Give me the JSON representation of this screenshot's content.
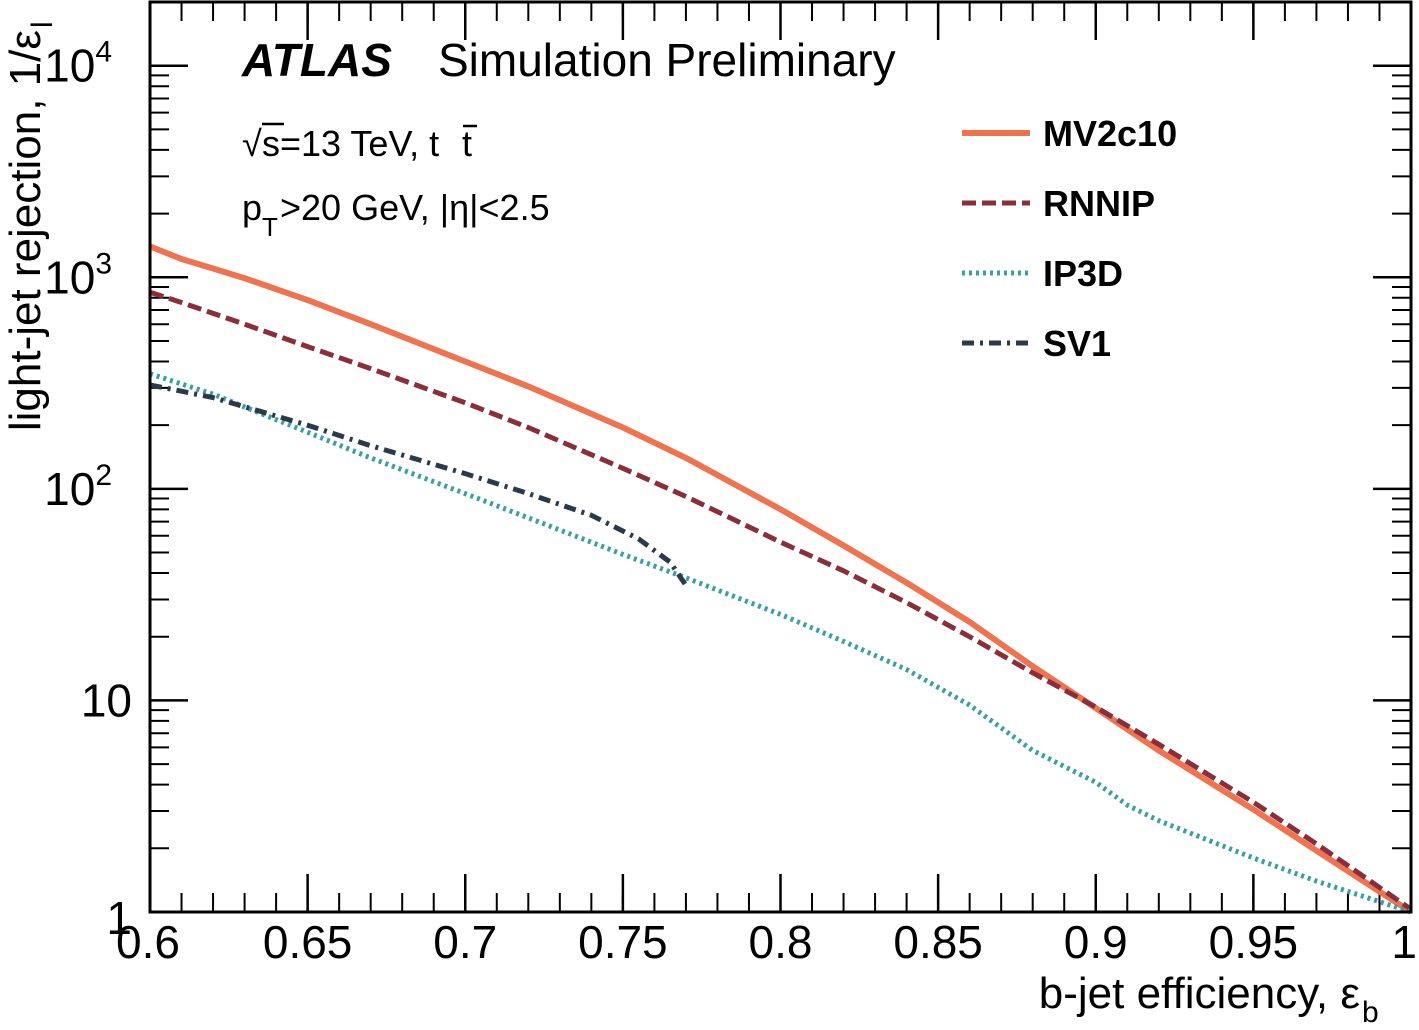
{
  "chart_data": {
    "type": "line",
    "experiment": "ATLAS",
    "subtitle": "Simulation Preliminary",
    "annotations": {
      "sqrt_symbol": "√",
      "energy": "s=13 TeV, t",
      "energy_tbar": "t",
      "cuts_p": "p",
      "cuts_sub": "T",
      "cuts_rest": ">20 GeV, |η|<2.5"
    },
    "xlabel": "b-jet efficiency, ε",
    "xlabel_sub": "b",
    "ylabel": "light-jet rejection, 1/ε",
    "ylabel_sub": "l",
    "xlim": [
      0.6,
      1.0
    ],
    "ylim": [
      1,
      20000
    ],
    "y_scale": "log",
    "legend_position": "top-right",
    "x_ticks": [
      {
        "value": 0.6,
        "label": "0.6"
      },
      {
        "value": 0.65,
        "label": "0.65"
      },
      {
        "value": 0.7,
        "label": "0.7"
      },
      {
        "value": 0.75,
        "label": "0.75"
      },
      {
        "value": 0.8,
        "label": "0.8"
      },
      {
        "value": 0.85,
        "label": "0.85"
      },
      {
        "value": 0.9,
        "label": "0.9"
      },
      {
        "value": 0.95,
        "label": "0.95"
      },
      {
        "value": 1.0,
        "label": "1"
      }
    ],
    "y_ticks": [
      {
        "value": 1,
        "label": "1",
        "sup": ""
      },
      {
        "value": 10,
        "label": "10",
        "sup": ""
      },
      {
        "value": 100,
        "label": "10",
        "sup": "2"
      },
      {
        "value": 1000,
        "label": "10",
        "sup": "3"
      },
      {
        "value": 10000,
        "label": "10",
        "sup": "4"
      }
    ],
    "series": [
      {
        "name": "MV2c10",
        "color": "#f0734f",
        "style": "solid",
        "x": [
          0.6,
          0.61,
          0.62,
          0.63,
          0.65,
          0.67,
          0.7,
          0.72,
          0.75,
          0.77,
          0.8,
          0.82,
          0.84,
          0.86,
          0.88,
          0.9,
          0.92,
          0.95,
          0.97,
          1.0
        ],
        "y": [
          1400,
          1220,
          1100,
          990,
          780,
          600,
          400,
          305,
          195,
          140,
          80,
          54,
          36,
          23.5,
          14.5,
          9.2,
          5.8,
          3.05,
          1.95,
          1.0
        ]
      },
      {
        "name": "RNNIP",
        "color": "#8a2e3b",
        "style": "dashed",
        "x": [
          0.6,
          0.61,
          0.63,
          0.65,
          0.67,
          0.7,
          0.72,
          0.75,
          0.77,
          0.8,
          0.82,
          0.84,
          0.86,
          0.88,
          0.9,
          0.92,
          0.95,
          0.97,
          1.0
        ],
        "y": [
          850,
          760,
          600,
          470,
          370,
          255,
          195,
          125,
          92,
          56,
          41,
          29,
          20,
          13.5,
          9.3,
          6.2,
          3.3,
          2.1,
          1.03
        ]
      },
      {
        "name": "IP3D",
        "color": "#3a9ea5",
        "style": "dotted",
        "x": [
          0.6,
          0.62,
          0.65,
          0.67,
          0.7,
          0.72,
          0.75,
          0.77,
          0.8,
          0.82,
          0.84,
          0.86,
          0.88,
          0.9,
          0.91,
          0.92,
          0.95,
          0.97,
          1.0
        ],
        "y": [
          350,
          280,
          185,
          140,
          95,
          73,
          49,
          38,
          25.5,
          19,
          14,
          9.5,
          5.8,
          4.1,
          3.2,
          2.7,
          1.8,
          1.4,
          1.0
        ]
      },
      {
        "name": "SV1",
        "color": "#2b3a4a",
        "style": "dashdot",
        "x": [
          0.6,
          0.62,
          0.65,
          0.67,
          0.7,
          0.72,
          0.74,
          0.755,
          0.765,
          0.77
        ],
        "y": [
          310,
          270,
          200,
          160,
          118,
          95,
          75,
          58,
          45,
          35
        ]
      }
    ]
  }
}
